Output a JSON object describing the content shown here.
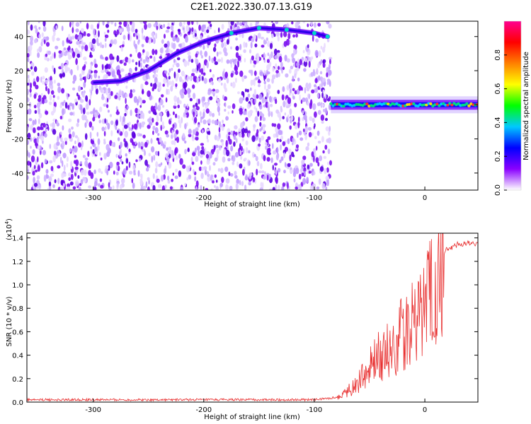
{
  "title": "C2E1.2022.330.07.13.G19",
  "chart_data": [
    {
      "type": "heatmap",
      "xlabel": "Height of straight line (km)",
      "ylabel": "Frequency (Hz)",
      "xlim": [
        -360,
        48
      ],
      "ylim": [
        -50,
        49
      ],
      "xticks": [
        -300,
        -200,
        -100,
        0
      ],
      "yticks": [
        -40,
        -20,
        0,
        20,
        40
      ],
      "noise_region_x": [
        -360,
        -85
      ],
      "tone_region_x": [
        -85,
        48
      ],
      "tone_frequency_hz": 0,
      "ridge": [
        {
          "x": -300,
          "y": 13
        },
        {
          "x": -275,
          "y": 14
        },
        {
          "x": -250,
          "y": 20
        },
        {
          "x": -225,
          "y": 30
        },
        {
          "x": -200,
          "y": 37
        },
        {
          "x": -175,
          "y": 42
        },
        {
          "x": -150,
          "y": 45
        },
        {
          "x": -125,
          "y": 44
        },
        {
          "x": -100,
          "y": 42
        },
        {
          "x": -88,
          "y": 40
        }
      ],
      "colorbar": {
        "label": "Normalized spectral amplitude",
        "range": [
          0,
          1
        ],
        "ticks": [
          "0.0",
          "0.2",
          "0.4",
          "0.6",
          "0.8"
        ],
        "colors": [
          "#ffffff",
          "#8a00ff",
          "#0000ff",
          "#00c8ff",
          "#00ff00",
          "#ffff00",
          "#ff8000",
          "#ff0000",
          "#ff0090"
        ]
      }
    },
    {
      "type": "line",
      "xlabel": "Height of straight line (km)",
      "ylabel": "SNR (10 * v/v)",
      "y_multiplier": "(x10",
      "y_multiplier_exp": "4",
      "xlim": [
        -360,
        48
      ],
      "ylim": [
        0,
        1.44
      ],
      "xticks": [
        -300,
        -200,
        -100,
        0
      ],
      "yticks": [
        "0.0",
        "0.2",
        "0.4",
        "0.6",
        "0.8",
        "1.0",
        "1.2",
        "1.4"
      ],
      "series": [
        {
          "color": "#e83030",
          "points": [
            {
              "x": -360,
              "y": 0.02
            },
            {
              "x": -100,
              "y": 0.02
            },
            {
              "x": -80,
              "y": 0.04
            },
            {
              "x": -70,
              "y": 0.12
            },
            {
              "x": -60,
              "y": 0.2
            },
            {
              "x": -50,
              "y": 0.35
            },
            {
              "x": -40,
              "y": 0.5
            },
            {
              "x": -30,
              "y": 0.55
            },
            {
              "x": -20,
              "y": 0.72
            },
            {
              "x": -10,
              "y": 0.85
            },
            {
              "x": 0,
              "y": 1.0
            },
            {
              "x": 10,
              "y": 1.22
            },
            {
              "x": 20,
              "y": 1.33
            },
            {
              "x": 30,
              "y": 1.37
            },
            {
              "x": 48,
              "y": 1.38
            }
          ]
        }
      ]
    }
  ]
}
